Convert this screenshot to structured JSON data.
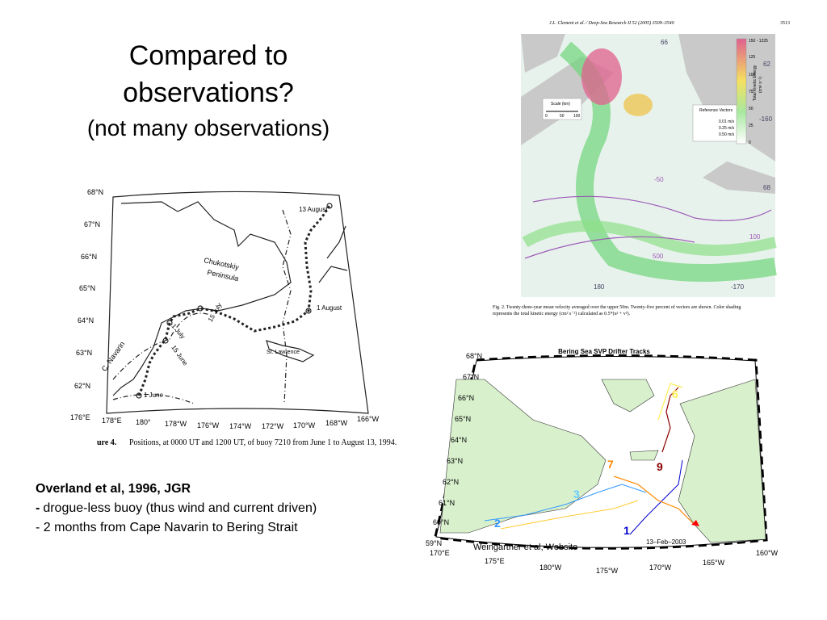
{
  "title": {
    "line1": "Compared to",
    "line2": "observations?",
    "line3": "(not many observations)"
  },
  "notes": {
    "reference": "Overland et al,  1996, JGR",
    "bullet1_marker": "-",
    "bullet1_text": "drogue-less buoy (thus wind and current driven)",
    "bullet2": "- 2 months from Cape Navarin to Bering Strait"
  },
  "buoy_map": {
    "lat_labels": [
      "68°N",
      "67°N",
      "66°N",
      "65°N",
      "64°N",
      "63°N",
      "62°N"
    ],
    "lon_labels": [
      "176°E",
      "178°E",
      "180°",
      "178°W",
      "176°W",
      "174°W",
      "172°W",
      "170°W",
      "168°W",
      "166°W"
    ],
    "places": [
      "Chukotskiy",
      "Peninsula",
      "C. Navarin",
      "St. Lawrence"
    ],
    "dates": [
      "13 August",
      "1 August",
      "15 July",
      "1 July",
      "15 June",
      "1 June"
    ],
    "caption_label": "ure 4.",
    "caption": "Positions, at 0000 UT and 1200 UT, of buoy 7210 from June 1 to August 13, 1994."
  },
  "model_map": {
    "header": "J.L. Clement et al. / Deep-Sea Research II 52 (2005) 3509–3540",
    "page": "3513",
    "scale_title": "Scale (km)",
    "scale_ticks": [
      "0",
      "50",
      "100"
    ],
    "legend_title": "Total Kinetic Energy",
    "legend_units": "(cm² s⁻²)",
    "legend_labels": [
      "150 - 1225",
      "125",
      "100",
      "75",
      "50",
      "25",
      "0"
    ],
    "vectors_title": "Reference Vectors",
    "vectors": [
      "0.01 m/s",
      "0.25 m/s",
      "0.50 m/s"
    ],
    "contours": [
      "66",
      "62",
      "-160",
      "-50",
      "100",
      "500",
      "180",
      "-170",
      "68"
    ],
    "caption_line1": "Fig. 2. Twenty-three-year mean velocity averaged over the upper 50m. Twenty-five percent of vectors are shown. Color shading",
    "caption_line2": "represents the total kinetic energy (cm² s⁻²) calculated as 0.5*(u² + v²)."
  },
  "drifter_map": {
    "title": "Bering Sea SVP Drifter Tracks",
    "lat_labels": [
      "68°N",
      "67°N",
      "66°N",
      "65°N",
      "64°N",
      "63°N",
      "62°N",
      "61°N",
      "60°N",
      "59°N"
    ],
    "lon_labels": [
      "170°E",
      "175°E",
      "180°W",
      "175°W",
      "170°W",
      "165°W",
      "160°W"
    ],
    "tracks": [
      "1",
      "2",
      "3",
      "6",
      "7",
      "9"
    ],
    "date": "13–Feb–2003",
    "credit": "Weingartner et al, Website"
  }
}
